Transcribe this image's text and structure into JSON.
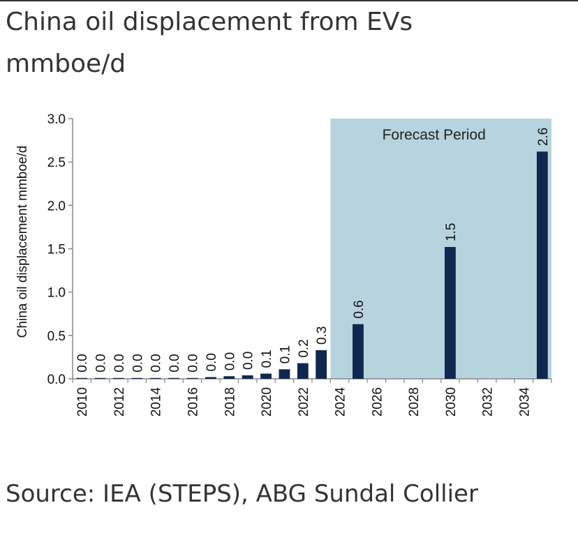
{
  "header": {
    "title_line1": "China oil displacement from EVs",
    "title_line2": "mmboe/d"
  },
  "footer": {
    "source": "Source: IEA (STEPS), ABG Sundal Collier"
  },
  "chart_data": {
    "type": "bar",
    "ylabel": "China oil displacement mmboe/d",
    "ylim": [
      0,
      3.0
    ],
    "yticks": [
      "0.0",
      "0.5",
      "1.0",
      "1.5",
      "2.0",
      "2.5",
      "3.0"
    ],
    "xrange": [
      2010,
      2035
    ],
    "xticks": [
      "2010",
      "2012",
      "2014",
      "2016",
      "2018",
      "2020",
      "2022",
      "2024",
      "2026",
      "2028",
      "2030",
      "2032",
      "2034"
    ],
    "bar_color": "#0f2850",
    "forecast": {
      "label": "Forecast Period",
      "start_year": 2024,
      "color": "#b7d3de"
    },
    "points": [
      {
        "year": 2010,
        "value": 0.01,
        "label": "0.0"
      },
      {
        "year": 2011,
        "value": 0.01,
        "label": "0.0"
      },
      {
        "year": 2012,
        "value": 0.01,
        "label": "0.0"
      },
      {
        "year": 2013,
        "value": 0.01,
        "label": "0.0"
      },
      {
        "year": 2014,
        "value": 0.01,
        "label": "0.0"
      },
      {
        "year": 2015,
        "value": 0.01,
        "label": "0.0"
      },
      {
        "year": 2016,
        "value": 0.01,
        "label": "0.0"
      },
      {
        "year": 2017,
        "value": 0.02,
        "label": "0.0"
      },
      {
        "year": 2018,
        "value": 0.03,
        "label": "0.0"
      },
      {
        "year": 2019,
        "value": 0.04,
        "label": "0.0"
      },
      {
        "year": 2020,
        "value": 0.06,
        "label": "0.1"
      },
      {
        "year": 2021,
        "value": 0.11,
        "label": "0.1"
      },
      {
        "year": 2022,
        "value": 0.18,
        "label": "0.2"
      },
      {
        "year": 2023,
        "value": 0.33,
        "label": "0.3"
      },
      {
        "year": 2025,
        "value": 0.63,
        "label": "0.6"
      },
      {
        "year": 2030,
        "value": 1.52,
        "label": "1.5"
      },
      {
        "year": 2035,
        "value": 2.62,
        "label": "2.6"
      }
    ]
  }
}
